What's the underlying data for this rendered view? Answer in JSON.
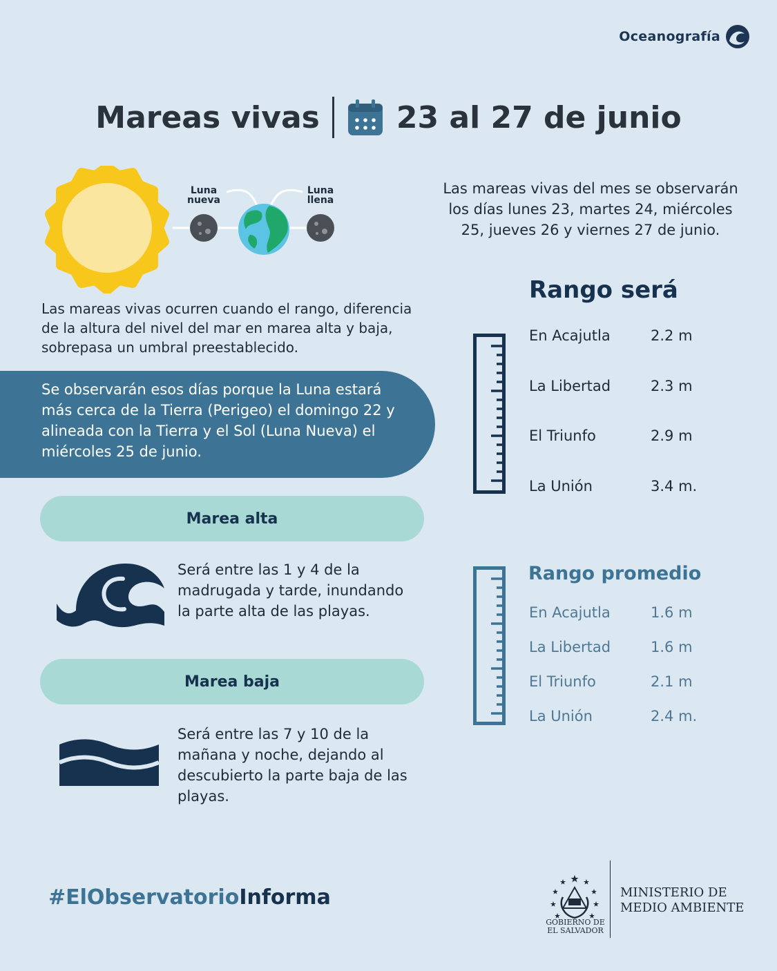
{
  "brand": {
    "label": "Oceanografía",
    "icon": "wave-circle-icon"
  },
  "title": {
    "left": "Mareas vivas",
    "right": "23 al 27 de junio",
    "icon": "calendar-icon"
  },
  "diagram": {
    "moon_new_label": "Luna\nnueva",
    "moon_full_label": "Luna\nllena"
  },
  "intro": "Las mareas vivas ocurren cuando el rango, diferencia de la altura del nivel del mar en marea alta y baja, sobrepasa un umbral preestablecido.",
  "moon_panel": "Se observarán esos días porque la Luna estará más cerca de la Tierra (Perigeo) el domingo 22 y alineada con la Tierra y el Sol (Luna Nueva) el miércoles 25 de junio.",
  "tides": {
    "high": {
      "label": "Marea alta",
      "text": "Será entre las 1 y 4 de la madrugada y tarde, inundando la parte alta de las playas."
    },
    "low": {
      "label": "Marea baja",
      "text": "Será entre las 7 y 10 de la mañana y noche, dejando al descubierto la parte baja de las playas."
    }
  },
  "summary": "Las mareas vivas del mes se observarán los días lunes 23, martes 24, miércoles 25, jueves 26 y viernes 27 de junio.",
  "range": {
    "title": "Rango será",
    "rows": [
      {
        "location": "En Acajutla",
        "value": "2.2 m"
      },
      {
        "location": "La Libertad",
        "value": "2.3 m"
      },
      {
        "location": "El Triunfo",
        "value": "2.9 m"
      },
      {
        "location": "La Unión",
        "value": "3.4 m."
      }
    ]
  },
  "average": {
    "title": "Rango promedio",
    "rows": [
      {
        "location": "En Acajutla",
        "value": "1.6 m"
      },
      {
        "location": "La Libertad",
        "value": "1.6 m"
      },
      {
        "location": "El Triunfo",
        "value": "2.1 m"
      },
      {
        "location": "La Unión",
        "value": "2.4 m."
      }
    ]
  },
  "footer": {
    "hashtag_part1": "#ElObservatorio",
    "hashtag_part2": "Informa",
    "gov_label": "GOBIERNO DE\nEL SALVADOR",
    "ministry_line1": "MINISTERIO DE",
    "ministry_line2": "MEDIO AMBIENTE"
  },
  "colors": {
    "background": "#dbe8f1",
    "navy": "#17324f",
    "teal_pill": "#a8d9d5",
    "panel_blue": "#3d7495",
    "sun": "#f8c71b"
  }
}
